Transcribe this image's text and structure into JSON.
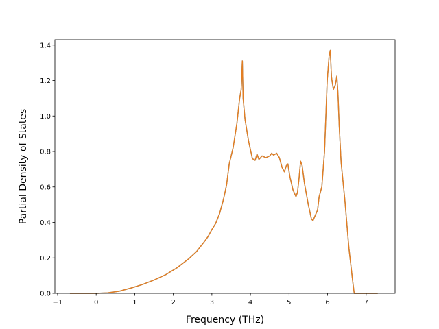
{
  "chart_data": {
    "type": "line",
    "title": "",
    "xlabel": "Frequency (THz)",
    "ylabel": "Partial Density of States",
    "xlim": [
      -1.07,
      7.75
    ],
    "ylim": [
      0.0,
      1.43
    ],
    "grid": false,
    "x_ticks": [
      -1,
      0,
      1,
      2,
      3,
      4,
      5,
      6,
      7
    ],
    "x_tick_labels": [
      "−1",
      "0",
      "1",
      "2",
      "3",
      "4",
      "5",
      "6",
      "7"
    ],
    "y_ticks": [
      0.0,
      0.2,
      0.4,
      0.6,
      0.8,
      1.0,
      1.2,
      1.4
    ],
    "y_tick_labels": [
      "0.0",
      "0.2",
      "0.4",
      "0.6",
      "0.8",
      "1.0",
      "1.2",
      "1.4"
    ],
    "series": [
      {
        "color": "#4a9ac9",
        "x": [
          -0.68,
          0.0,
          0.3,
          0.6,
          0.9,
          1.2,
          1.5,
          1.8,
          2.1,
          2.4,
          2.6,
          2.8,
          2.9,
          3.0,
          3.1,
          3.2,
          3.3,
          3.38,
          3.45,
          3.55,
          3.65,
          3.72,
          3.76,
          3.79,
          3.81,
          3.86,
          3.95,
          4.05,
          4.12,
          4.17,
          4.22,
          4.3,
          4.4,
          4.5,
          4.55,
          4.6,
          4.68,
          4.75,
          4.82,
          4.88,
          4.93,
          4.97,
          5.02,
          5.1,
          5.18,
          5.22,
          5.26,
          5.3,
          5.34,
          5.4,
          5.5,
          5.58,
          5.62,
          5.68,
          5.74,
          5.78,
          5.85,
          5.92,
          5.99,
          6.04,
          6.07,
          6.1,
          6.15,
          6.2,
          6.24,
          6.27,
          6.3,
          6.35,
          6.45,
          6.55,
          6.65,
          6.69,
          6.72,
          7.3
        ],
        "y": [
          0.0,
          0.0,
          0.003,
          0.012,
          0.03,
          0.05,
          0.075,
          0.105,
          0.145,
          0.195,
          0.235,
          0.29,
          0.32,
          0.36,
          0.395,
          0.45,
          0.53,
          0.61,
          0.73,
          0.82,
          0.96,
          1.1,
          1.15,
          1.31,
          1.1,
          0.98,
          0.86,
          0.76,
          0.75,
          0.785,
          0.755,
          0.775,
          0.765,
          0.775,
          0.79,
          0.78,
          0.79,
          0.765,
          0.71,
          0.685,
          0.72,
          0.73,
          0.66,
          0.585,
          0.545,
          0.57,
          0.65,
          0.745,
          0.72,
          0.62,
          0.5,
          0.42,
          0.41,
          0.44,
          0.47,
          0.545,
          0.6,
          0.8,
          1.2,
          1.34,
          1.37,
          1.22,
          1.15,
          1.175,
          1.225,
          1.12,
          0.95,
          0.74,
          0.52,
          0.26,
          0.07,
          0.0,
          0.0,
          0.0
        ]
      },
      {
        "color": "#e37e23",
        "x": [
          -0.68,
          0.0,
          0.3,
          0.6,
          0.9,
          1.2,
          1.5,
          1.8,
          2.1,
          2.4,
          2.6,
          2.8,
          2.9,
          3.0,
          3.1,
          3.2,
          3.3,
          3.38,
          3.45,
          3.55,
          3.65,
          3.72,
          3.76,
          3.79,
          3.81,
          3.86,
          3.95,
          4.05,
          4.12,
          4.17,
          4.22,
          4.3,
          4.4,
          4.5,
          4.55,
          4.6,
          4.68,
          4.75,
          4.82,
          4.88,
          4.93,
          4.97,
          5.02,
          5.1,
          5.18,
          5.22,
          5.26,
          5.3,
          5.34,
          5.4,
          5.5,
          5.58,
          5.62,
          5.68,
          5.74,
          5.78,
          5.85,
          5.92,
          5.99,
          6.04,
          6.07,
          6.1,
          6.15,
          6.2,
          6.24,
          6.27,
          6.3,
          6.35,
          6.45,
          6.55,
          6.65,
          6.69,
          6.72,
          7.3
        ],
        "y": [
          0.0,
          0.0,
          0.003,
          0.012,
          0.03,
          0.05,
          0.075,
          0.105,
          0.145,
          0.195,
          0.235,
          0.29,
          0.32,
          0.36,
          0.395,
          0.45,
          0.53,
          0.61,
          0.73,
          0.82,
          0.96,
          1.1,
          1.15,
          1.31,
          1.1,
          0.98,
          0.86,
          0.76,
          0.75,
          0.785,
          0.755,
          0.775,
          0.765,
          0.775,
          0.79,
          0.78,
          0.79,
          0.765,
          0.71,
          0.685,
          0.72,
          0.73,
          0.66,
          0.585,
          0.545,
          0.57,
          0.65,
          0.745,
          0.72,
          0.62,
          0.5,
          0.42,
          0.41,
          0.44,
          0.47,
          0.545,
          0.6,
          0.8,
          1.2,
          1.34,
          1.37,
          1.22,
          1.15,
          1.175,
          1.225,
          1.12,
          0.95,
          0.74,
          0.52,
          0.26,
          0.07,
          0.0,
          0.0,
          0.0
        ]
      }
    ]
  }
}
